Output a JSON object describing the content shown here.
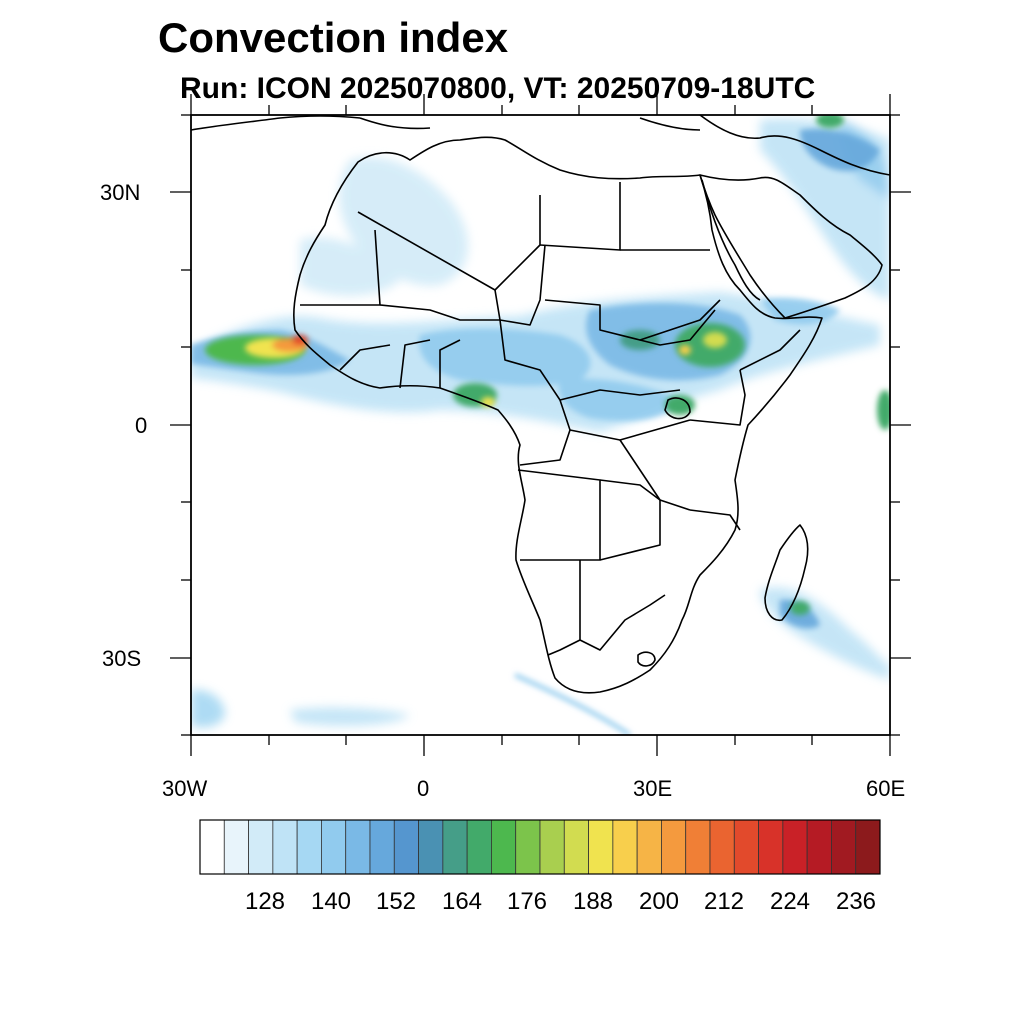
{
  "title": "Convection index",
  "subtitle": "Run: ICON 2025070800,  VT: 20250709-18UTC",
  "axes": {
    "lat_labels": [
      "30N",
      "0",
      "30S"
    ],
    "lon_labels": [
      "30W",
      "0",
      "30E",
      "60E"
    ],
    "lat_range": [
      -40,
      40
    ],
    "lon_range": [
      -30,
      60
    ]
  },
  "legend": {
    "tick_labels": [
      "128",
      "140",
      "152",
      "164",
      "176",
      "188",
      "200",
      "212",
      "224",
      "236"
    ],
    "colors": [
      "#ffffff",
      "#e8f4fb",
      "#d2ebf8",
      "#bfe3f6",
      "#a6d8f3",
      "#91cbee",
      "#7ab9e6",
      "#66a8dc",
      "#5596cf",
      "#4a91b3",
      "#459e88",
      "#42aa6a",
      "#4db84e",
      "#7cc44b",
      "#a9cf4f",
      "#d2dc50",
      "#f0e34f",
      "#f8cf4c",
      "#f6b446",
      "#f49a3e",
      "#f07f36",
      "#ea6430",
      "#e24a2c",
      "#d83229",
      "#c92127",
      "#b51b24",
      "#a11a21",
      "#8c1a1c"
    ]
  }
}
